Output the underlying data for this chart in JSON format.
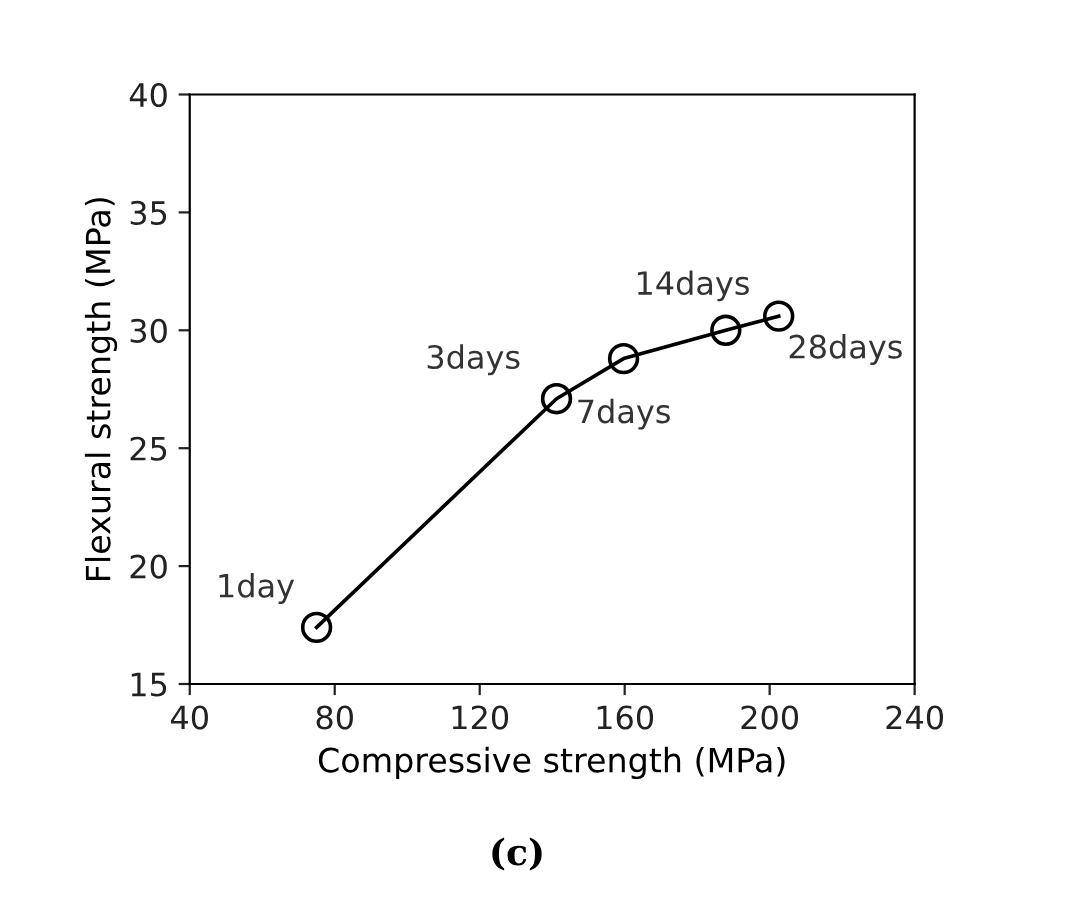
{
  "chart_data": {
    "type": "line",
    "xlabel": "Compressive strength (MPa)",
    "ylabel": "Flexural strength (MPa)",
    "x": [
      75,
      141.2,
      159.7,
      187.9,
      202.5
    ],
    "series": [
      {
        "color": "#000000",
        "values": [
          17.4,
          27.1,
          28.8,
          30.0,
          30.6
        ]
      }
    ],
    "marker": "circle",
    "line_style": "solid",
    "xlim": [
      40,
      240
    ],
    "xticks": [
      40,
      80,
      120,
      160,
      200,
      240
    ],
    "ylim": [
      15,
      40
    ],
    "yticks": [
      15,
      20,
      25,
      30,
      35,
      40
    ],
    "grid": false,
    "legend": false,
    "annotations": [
      {
        "text": "1day",
        "x": 75,
        "y": 17.4
      },
      {
        "text": "3days",
        "x": 141.2,
        "y": 27.1
      },
      {
        "text": "7days",
        "x": 159.7,
        "y": 28.8
      },
      {
        "text": "14days",
        "x": 187.9,
        "y": 30.0
      },
      {
        "text": "28days",
        "x": 202.5,
        "y": 30.6
      },
      "(c)"
    ]
  }
}
